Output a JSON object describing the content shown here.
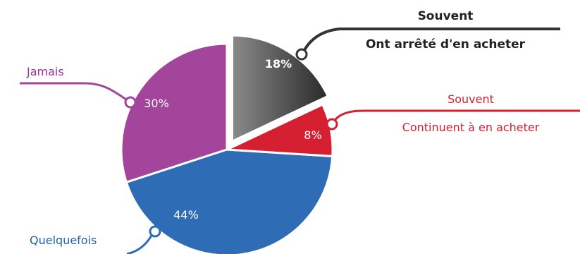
{
  "chart_data": {
    "type": "pie",
    "title": "",
    "slices": [
      {
        "id": "souvent-arrete",
        "value": 18,
        "label": "18%",
        "legend": [
          "Souvent",
          "Ont arrêté d'en acheter"
        ],
        "color": "#3a3a3a",
        "label_color": "#222222",
        "exploded": true
      },
      {
        "id": "souvent-continuent",
        "value": 8,
        "label": "8%",
        "legend": [
          "Souvent",
          "Continuent à en acheter"
        ],
        "color": "#d42030",
        "label_color": "#d42030",
        "exploded": false
      },
      {
        "id": "quelquefois",
        "value": 44,
        "label": "44%",
        "legend": [
          "Quelquefois"
        ],
        "color": "#2e6db6",
        "label_color": "#1f5fa8",
        "exploded": false
      },
      {
        "id": "jamais",
        "value": 30,
        "label": "30%",
        "legend": [
          "Jamais"
        ],
        "color": "#a3459b",
        "label_color": "#993399",
        "exploded": false
      }
    ]
  }
}
